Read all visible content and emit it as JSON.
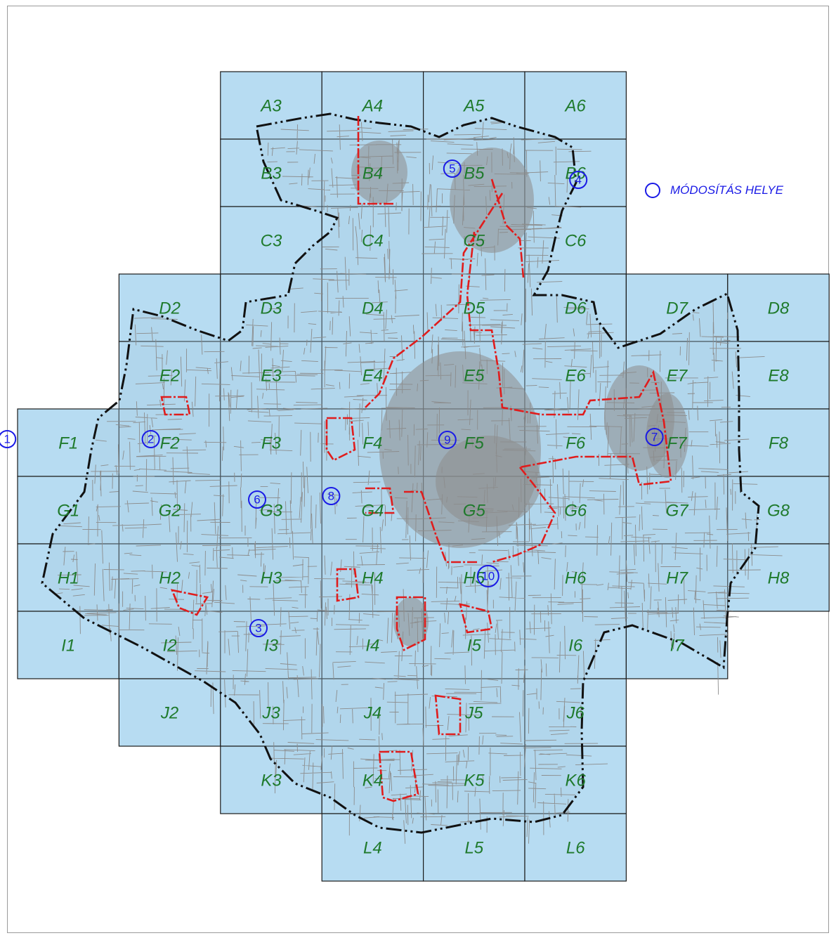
{
  "map": {
    "grid_rows": [
      {
        "row": "A",
        "cols": [
          "A3",
          "A4",
          "A5",
          "A6"
        ]
      },
      {
        "row": "B",
        "cols": [
          "B3",
          "B4",
          "B5",
          "B6"
        ]
      },
      {
        "row": "C",
        "cols": [
          "C3",
          "C4",
          "C5",
          "C6"
        ]
      },
      {
        "row": "D",
        "cols": [
          "D2",
          "D3",
          "D4",
          "D5",
          "D6",
          "D7",
          "D8"
        ]
      },
      {
        "row": "E",
        "cols": [
          "E2",
          "E3",
          "E4",
          "E5",
          "E6",
          "E7",
          "E8"
        ]
      },
      {
        "row": "F",
        "cols": [
          "F1",
          "F2",
          "F3",
          "F4",
          "F5",
          "F6",
          "F7",
          "F8"
        ]
      },
      {
        "row": "G",
        "cols": [
          "G1",
          "G2",
          "G3",
          "G4",
          "G5",
          "G6",
          "G7",
          "G8"
        ]
      },
      {
        "row": "H",
        "cols": [
          "H1",
          "H2",
          "H3",
          "H4",
          "H5",
          "H6",
          "H7",
          "H8"
        ]
      },
      {
        "row": "I",
        "cols": [
          "I1",
          "I2",
          "I3",
          "I4",
          "I5",
          "I6",
          "I7"
        ]
      },
      {
        "row": "J",
        "cols": [
          "J2",
          "J3",
          "J4",
          "J5",
          "J6"
        ]
      },
      {
        "row": "K",
        "cols": [
          "K3",
          "K4",
          "K5",
          "K6"
        ]
      },
      {
        "row": "L",
        "cols": [
          "L4",
          "L5",
          "L6"
        ]
      }
    ],
    "markers": [
      {
        "label": "1",
        "cell": "F1"
      },
      {
        "label": "2",
        "cell": "F2"
      },
      {
        "label": "3",
        "cell": "I3"
      },
      {
        "label": "4",
        "cell": "B6"
      },
      {
        "label": "5",
        "cell": "B5"
      },
      {
        "label": "6",
        "cell": "G3"
      },
      {
        "label": "7",
        "cell": "F7"
      },
      {
        "label": "8",
        "cell": "G4"
      },
      {
        "label": "9",
        "cell": "F5"
      },
      {
        "label": "10",
        "cell": "H5"
      }
    ],
    "colors": {
      "sheet_fill": "#b7dcf2",
      "label_green": "#1f7a2c",
      "marker_blue": "#1a1ae6",
      "modification_red": "#e01c1c",
      "boundary_black": "#111111"
    }
  },
  "legend": {
    "icon": "circle-marker-icon",
    "label": "MÓDOSÍTÁS HELYE"
  }
}
